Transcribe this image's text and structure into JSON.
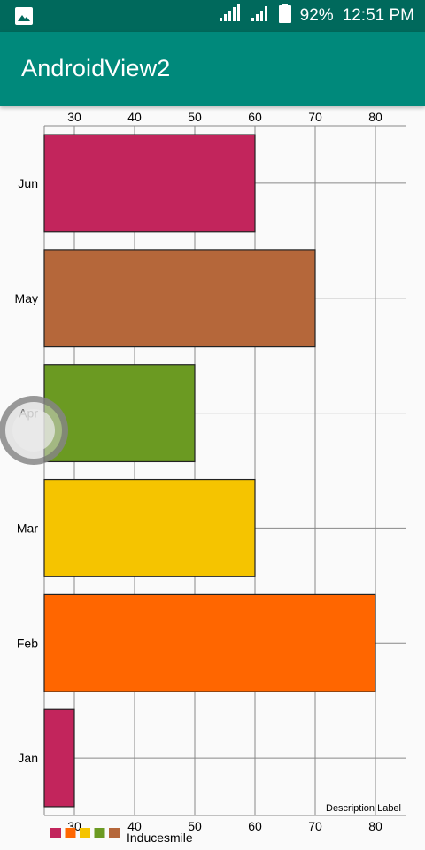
{
  "status_bar": {
    "icons": [
      "image-icon",
      "signal-icon",
      "signal-icon",
      "battery-icon"
    ],
    "battery": "92%",
    "time": "12:51 PM"
  },
  "app_bar": {
    "title": "AndroidView2"
  },
  "chart_data": {
    "type": "bar",
    "orientation": "horizontal",
    "categories": [
      "Jan",
      "Feb",
      "Mar",
      "Apr",
      "May",
      "Jun"
    ],
    "values": [
      30,
      80,
      60,
      50,
      70,
      60
    ],
    "bar_colors": [
      "#c2255c",
      "#ff6600",
      "#f5c400",
      "#6b9a22",
      "#b5673a",
      "#c2255c"
    ],
    "xlim": [
      25,
      85
    ],
    "xticks": [
      30,
      40,
      50,
      60,
      70,
      80
    ],
    "description": "Description Label",
    "legend": {
      "label": "Inducesmile",
      "colors": [
        "#c2255c",
        "#ff6600",
        "#f5c400",
        "#6b9a22",
        "#b5673a"
      ],
      "placement": "bottom-left"
    },
    "grid": true
  }
}
